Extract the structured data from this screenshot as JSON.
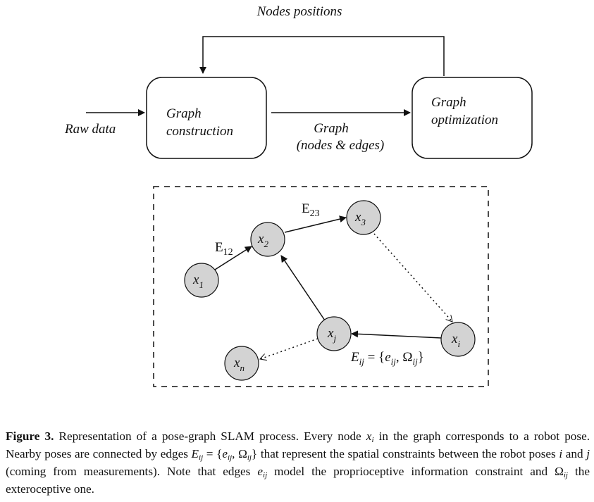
{
  "diagram": {
    "top_label": "Nodes positions",
    "input_label": "Raw data",
    "box_construction": [
      "Graph",
      "construction"
    ],
    "box_optimization": [
      "Graph",
      "optimization"
    ],
    "graph_label": [
      "Graph",
      "(nodes & edges)"
    ],
    "nodes": [
      {
        "label": "x",
        "sub": "1"
      },
      {
        "label": "x",
        "sub": "2"
      },
      {
        "label": "x",
        "sub": "3"
      },
      {
        "label": "x",
        "sub": "i"
      },
      {
        "label": "x",
        "sub": "j"
      },
      {
        "label": "x",
        "sub": "n"
      }
    ],
    "edges": [
      {
        "label": "E",
        "sub": "12"
      },
      {
        "label": "E",
        "sub": "23"
      }
    ],
    "constraint": [
      "E",
      "ij",
      " = {",
      "e",
      "ij",
      ", ",
      "Ω",
      "ij",
      "}"
    ]
  },
  "caption": {
    "label": "Figure 3.",
    "parts": [
      " Representation of a pose-graph SLAM process. Every node ",
      "x",
      "i",
      " in the graph corresponds to a robot pose. Nearby poses are connected by edges ",
      "E",
      "ij",
      " = {",
      "e",
      "ij",
      ", ",
      "Ω",
      "ij",
      "} that represent the spatial constraints between the robot poses ",
      "i",
      " and ",
      "j",
      " (coming from measurements). Note that edges ",
      "e",
      "ij",
      " model the proprioceptive information constraint and ",
      "Ω",
      "ij",
      " the exteroceptive one."
    ]
  }
}
